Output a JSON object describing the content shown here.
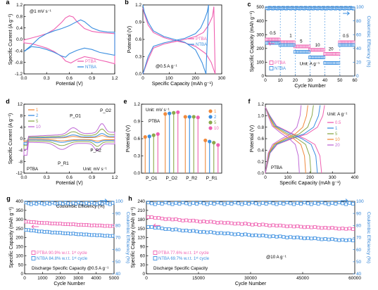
{
  "colors": {
    "PTBA": "#ef5fb0",
    "NTBA": "#3a8ee0",
    "blue_axis": "#2a7fd4",
    "accent_rates": [
      "#f08a3c",
      "#3a8ee0",
      "#8aa84a",
      "#c06ad6",
      "#ef5fb0"
    ]
  },
  "chart_data": [
    {
      "panel": "a",
      "type": "line",
      "xlabel": "Potential (V)",
      "ylabel": "Specific Current (A g⁻¹)",
      "xlim": [
        0.0,
        1.2
      ],
      "ylim": [
        -1.2,
        1.2
      ],
      "xticks": [
        "0.0",
        "0.3",
        "0.6",
        "0.9",
        "1.2"
      ],
      "yticks": [
        "-1.2",
        "-0.8",
        "-0.4",
        "0.0",
        "0.4",
        "0.8",
        "1.2"
      ],
      "annotation": "@1 mV s⁻¹",
      "series": [
        {
          "name": "PTBA",
          "color": "#ef5fb0",
          "x": [
            0.0,
            0.1,
            0.2,
            0.3,
            0.4,
            0.5,
            0.55,
            0.6,
            0.65,
            0.7,
            0.8,
            0.9,
            1.0,
            1.1,
            1.2,
            1.2,
            1.1,
            1.0,
            0.9,
            0.8,
            0.7,
            0.62,
            0.55,
            0.5,
            0.4,
            0.3,
            0.2,
            0.1,
            0.0
          ],
          "y": [
            -0.02,
            0.05,
            0.12,
            0.2,
            0.35,
            0.6,
            0.75,
            0.82,
            0.78,
            0.62,
            0.38,
            0.28,
            0.24,
            0.22,
            0.2,
            -0.85,
            -0.78,
            -0.72,
            -0.65,
            -0.6,
            -0.7,
            -0.82,
            -0.75,
            -0.6,
            -0.42,
            -0.3,
            -0.22,
            -0.15,
            -0.12
          ]
        },
        {
          "name": "NTBA",
          "color": "#3a8ee0",
          "x": [
            0.0,
            0.1,
            0.2,
            0.3,
            0.4,
            0.5,
            0.6,
            0.7,
            0.75,
            0.8,
            0.9,
            1.0,
            1.1,
            1.2,
            1.2,
            1.1,
            1.0,
            0.9,
            0.8,
            0.7,
            0.6,
            0.55,
            0.5,
            0.4,
            0.3,
            0.2,
            0.1,
            0.0
          ],
          "y": [
            -0.42,
            -0.2,
            0.05,
            0.2,
            0.3,
            0.38,
            0.48,
            0.62,
            0.68,
            0.62,
            0.4,
            0.3,
            0.26,
            0.25,
            -0.55,
            -0.5,
            -0.45,
            -0.35,
            -0.3,
            -0.38,
            -0.5,
            -0.62,
            -0.58,
            -0.45,
            -0.35,
            -0.28,
            -0.25,
            -0.42
          ]
        }
      ]
    },
    {
      "panel": "b",
      "type": "line",
      "xlabel": "Specific Capacity (mAh g⁻¹)",
      "ylabel": "Potential (V)",
      "xlim": [
        0,
        300
      ],
      "ylim": [
        0.0,
        1.2
      ],
      "xticks": [
        "0",
        "100",
        "200",
        "300"
      ],
      "yticks": [
        "0.0",
        "0.3",
        "0.6",
        "0.9",
        "1.2"
      ],
      "annotation": "@0.5 A g⁻¹",
      "series": [
        {
          "name": "PTBA",
          "color": "#ef5fb0",
          "x": [
            0,
            20,
            40,
            80,
            120,
            160,
            200,
            230,
            250,
            265,
            270,
            275,
            260,
            240,
            200,
            160,
            120,
            80,
            40,
            20,
            5,
            0
          ],
          "y": [
            0.0,
            0.25,
            0.45,
            0.52,
            0.56,
            0.6,
            0.65,
            0.72,
            0.85,
            1.0,
            1.17,
            0.0,
            0.2,
            0.35,
            0.48,
            0.54,
            0.58,
            0.63,
            0.72,
            0.85,
            1.05,
            1.15
          ]
        },
        {
          "name": "NTBA",
          "color": "#3a8ee0",
          "x": [
            0,
            20,
            40,
            80,
            120,
            160,
            200,
            220,
            235,
            245,
            250,
            240,
            225,
            200,
            160,
            120,
            80,
            40,
            20,
            5,
            0
          ],
          "y": [
            0.0,
            0.3,
            0.48,
            0.54,
            0.58,
            0.62,
            0.7,
            0.8,
            0.95,
            1.08,
            1.2,
            0.0,
            0.2,
            0.42,
            0.55,
            0.6,
            0.65,
            0.75,
            0.9,
            1.08,
            1.2
          ]
        }
      ]
    },
    {
      "panel": "c",
      "type": "scatter",
      "xlabel": "Cycle Number",
      "ylabel": "Specific Capacity (mAh g⁻¹)",
      "y2label": "Coulombic Efficiency (%)",
      "xlim": [
        0,
        60
      ],
      "ylim": [
        0,
        500
      ],
      "y2lim": [
        0,
        100
      ],
      "xticks": [
        "0",
        "10",
        "20",
        "30",
        "40",
        "50",
        "60"
      ],
      "yticks": [
        "0",
        "100",
        "200",
        "300",
        "400",
        "500"
      ],
      "y2ticks": [
        "0",
        "20",
        "40",
        "60",
        "80",
        "100"
      ],
      "rate_labels": [
        "0.5",
        "1",
        "5",
        "10",
        "20",
        "0.5"
      ],
      "unit_label": "Unit: A g⁻¹",
      "series": [
        {
          "name": "PTBA",
          "color": "#ef5fb0",
          "capacity_by_segment": [
            265,
            245,
            215,
            190,
            160,
            245
          ]
        },
        {
          "name": "NTBA",
          "color": "#3a8ee0",
          "capacity_by_segment": [
            240,
            225,
            175,
            135,
            95,
            225
          ]
        },
        {
          "name": "CE",
          "color": "#3a8ee0",
          "ce_percent": 99
        }
      ]
    },
    {
      "panel": "d",
      "type": "line",
      "xlabel": "Potential (V)",
      "ylabel": "Specific Current (A g⁻¹)",
      "xlim": [
        0.0,
        1.2
      ],
      "ylim": [
        -12,
        12
      ],
      "xticks": [
        "0.0",
        "0.3",
        "0.6",
        "0.9",
        "1.2"
      ],
      "yticks": [
        "-12",
        "-8",
        "-4",
        "0",
        "4",
        "8",
        "12"
      ],
      "peak_labels": [
        "P_O1",
        "P_O2",
        "P_R1",
        "P_R2"
      ],
      "sample": "PTBA",
      "unit_label": "Unit: mV s⁻¹",
      "series": [
        {
          "name": "1",
          "color": "#f08a3c",
          "scale": 1.0
        },
        {
          "name": "2",
          "color": "#3a8ee0",
          "scale": 1.7
        },
        {
          "name": "5",
          "color": "#8aa84a",
          "scale": 3.2
        },
        {
          "name": "10",
          "color": "#c06ad6",
          "scale": 5.0
        }
      ]
    },
    {
      "panel": "e",
      "type": "bar",
      "xlabel": "",
      "ylabel": "Potential (V)",
      "ylim": [
        0.0,
        1.2
      ],
      "yticks": [
        "0.0",
        "0.3",
        "0.6",
        "0.9",
        "1.2"
      ],
      "categories": [
        "P_O1",
        "P_O2",
        "P_R2",
        "P_R1"
      ],
      "sample": "PTBA",
      "unit_label": "Unit: mV s⁻¹",
      "series": [
        {
          "name": "1",
          "color": "#f08a3c",
          "values": [
            0.63,
            1.03,
            0.98,
            0.57
          ]
        },
        {
          "name": "2",
          "color": "#3a8ee0",
          "values": [
            0.64,
            1.04,
            0.98,
            0.55
          ]
        },
        {
          "name": "5",
          "color": "#8aa84a",
          "values": [
            0.66,
            1.05,
            0.98,
            0.53
          ]
        },
        {
          "name": "10",
          "color": "#ef5fb0",
          "values": [
            0.68,
            1.06,
            0.97,
            0.49
          ]
        }
      ]
    },
    {
      "panel": "f",
      "type": "line",
      "xlabel": "Specific Capacity (mAh g⁻¹)",
      "ylabel": "Potential (V)",
      "xlim": [
        0,
        400
      ],
      "ylim": [
        0.0,
        1.2
      ],
      "xticks": [
        "0",
        "100",
        "200",
        "300",
        "400"
      ],
      "yticks": [
        "0.0",
        "0.2",
        "0.4",
        "0.6",
        "0.8",
        "1.0",
        "1.2"
      ],
      "sample": "PTBA",
      "unit_label": "Unit: A g⁻¹",
      "series": [
        {
          "name": "0.5",
          "color": "#ef5fb0",
          "capacity": 265
        },
        {
          "name": "1",
          "color": "#3a8ee0",
          "capacity": 245
        },
        {
          "name": "5",
          "color": "#8aa84a",
          "capacity": 215
        },
        {
          "name": "10",
          "color": "#f08a3c",
          "capacity": 190
        },
        {
          "name": "20",
          "color": "#c06ad6",
          "capacity": 160
        }
      ]
    },
    {
      "panel": "g",
      "type": "scatter",
      "xlabel": "Cycle Number",
      "ylabel": "Specific Capacity (mAh g⁻¹)",
      "y2label": "Coulombic Efficiency (%)",
      "xlim": [
        0,
        5000
      ],
      "ylim": [
        0,
        400
      ],
      "y2lim": [
        40,
        100
      ],
      "xticks": [
        "0",
        "1000",
        "2000",
        "3000",
        "4000",
        "5000"
      ],
      "yticks": [
        "0",
        "50",
        "100",
        "150",
        "200",
        "250",
        "300",
        "350",
        "400"
      ],
      "y2ticks": [
        "40",
        "50",
        "60",
        "70",
        "80",
        "90",
        "100"
      ],
      "ce_label": "Coulombic Efficiency (%)",
      "footer": "Discharge Specific Capacity @0.5 A g⁻¹",
      "series": [
        {
          "name": "PTBA",
          "color": "#ef5fb0",
          "retention_text": "PTBA  90.9% w.r.t. 1ˢᵗ cycle",
          "start": 290,
          "end": 263
        },
        {
          "name": "NTBA",
          "color": "#3a8ee0",
          "retention_text": "NTBA  84.8% w.r.t. 1ˢᵗ cycle",
          "start": 245,
          "end": 208
        },
        {
          "name": "CE",
          "color": "#3a8ee0",
          "ce_percent": 99
        }
      ]
    },
    {
      "panel": "h",
      "type": "scatter",
      "xlabel": "Cycle Number",
      "ylabel": "Specific Capacity (mAh g⁻¹)",
      "y2label": "Coulombic Efficiency (%)",
      "xlim": [
        0,
        60000
      ],
      "ylim": [
        0,
        240
      ],
      "y2lim": [
        40,
        100
      ],
      "xticks": [
        "0",
        "15000",
        "30000",
        "45000",
        "60000"
      ],
      "yticks": [
        "0",
        "30",
        "60",
        "90",
        "120",
        "150",
        "180",
        "210",
        "240"
      ],
      "y2ticks": [
        "40",
        "50",
        "60",
        "70",
        "80",
        "90",
        "100"
      ],
      "rate": "@10 A g⁻¹",
      "footer": "Discharge Specific Capacity",
      "series": [
        {
          "name": "PTBA",
          "color": "#ef5fb0",
          "retention_text": "PTBA  77.6% w.r.t. 1ˢᵗ cycle",
          "start": 190,
          "end": 148
        },
        {
          "name": "NTBA",
          "color": "#3a8ee0",
          "retention_text": "NTBA  69.7% w.r.t. 1ˢᵗ cycle",
          "start": 158,
          "end": 110
        },
        {
          "name": "CE",
          "color": "#3a8ee0",
          "ce_percent": 99
        }
      ]
    }
  ]
}
